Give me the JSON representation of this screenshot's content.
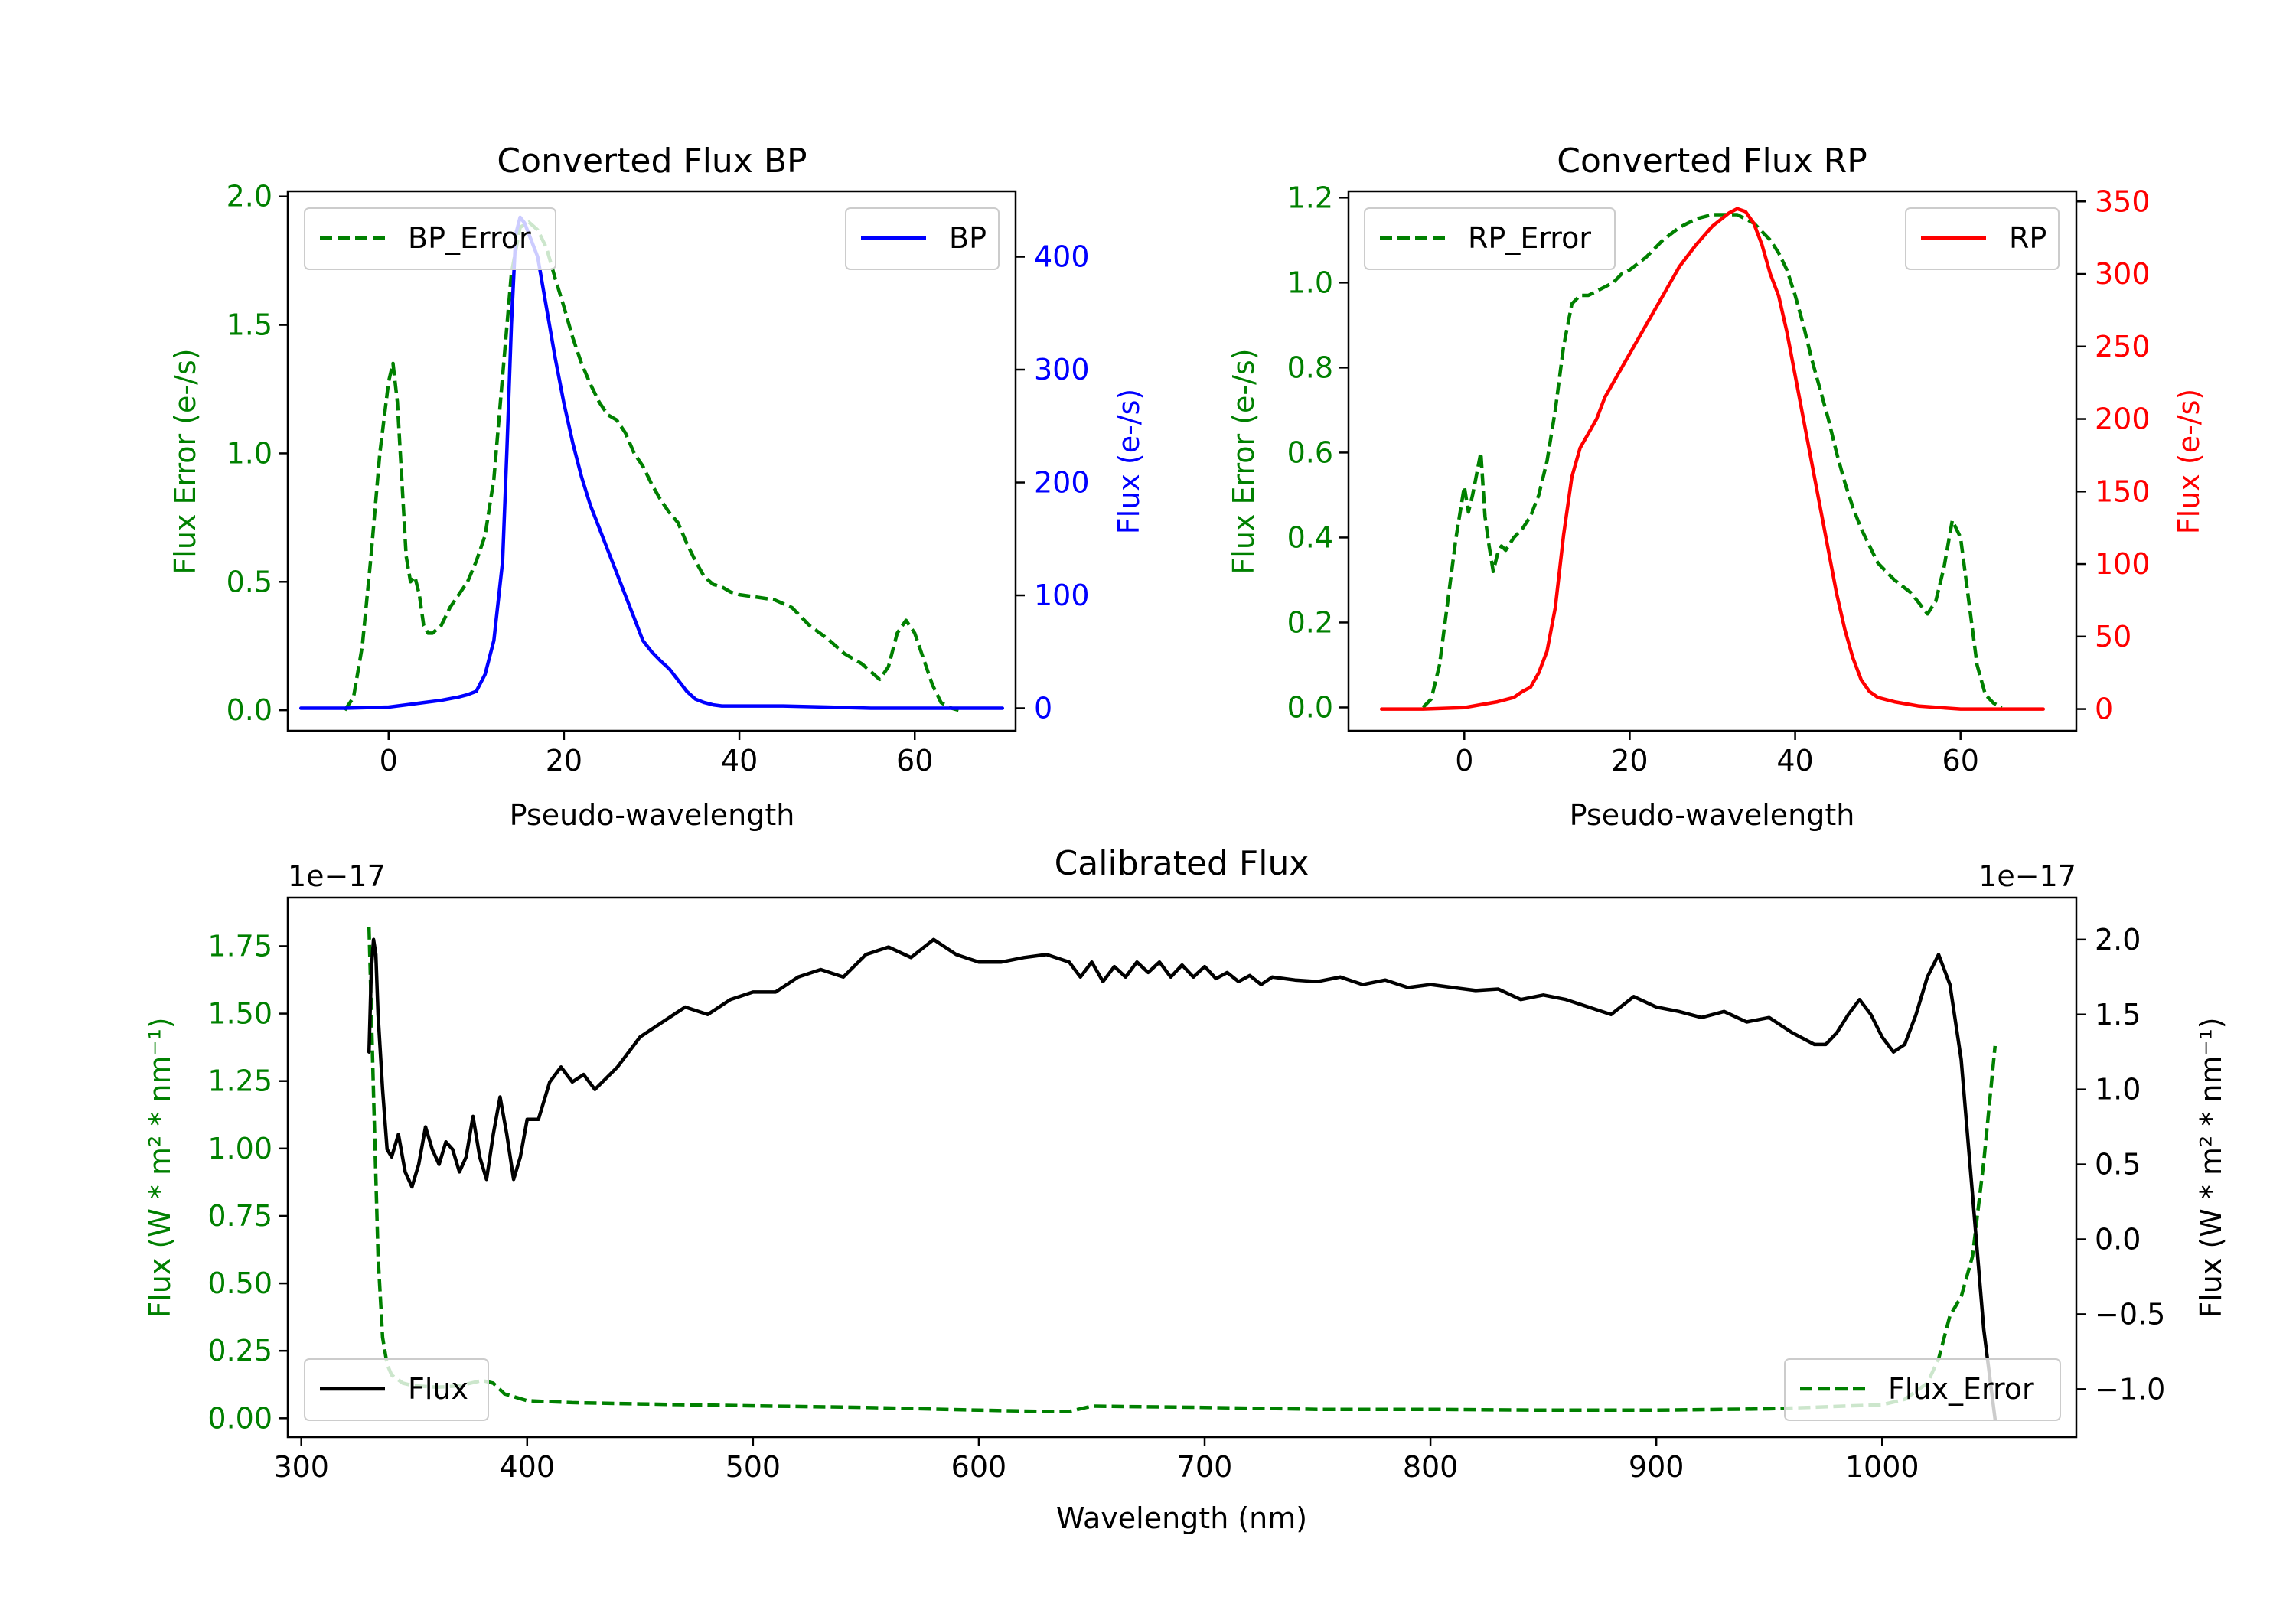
{
  "figure": {
    "subplots": [
      "bp",
      "rp",
      "cal"
    ]
  },
  "chart_data": [
    {
      "id": "bp",
      "type": "line",
      "title": "Converted Flux BP",
      "xlabel": "Pseudo-wavelength",
      "ylabel_left": "Flux Error (e-/s)",
      "ylabel_right": "Flux (e-/s)",
      "xlim": [
        -11.5,
        71.5
      ],
      "ylim_left": [
        -0.08,
        2.02
      ],
      "ylim_right": [
        -20,
        458
      ],
      "xticks": [
        0,
        20,
        40,
        60
      ],
      "yticks_left": [
        "0.0",
        "0.5",
        "1.0",
        "1.5",
        "2.0"
      ],
      "yticks_right": [
        "0",
        "100",
        "200",
        "300",
        "400"
      ],
      "colors": {
        "left": "#008000",
        "right": "#0000ff"
      },
      "legends": [
        {
          "label": "BP_Error",
          "placement": "upper left",
          "style": "dashed",
          "color": "#008000"
        },
        {
          "label": "BP",
          "placement": "upper right",
          "style": "solid",
          "color": "#0000ff"
        }
      ],
      "series": [
        {
          "name": "BP_Error",
          "axis": "left",
          "color": "#008000",
          "style": "dashed",
          "x": [
            -5,
            -4,
            -3,
            -2,
            -1,
            0,
            0.5,
            1,
            1.5,
            2,
            2.5,
            3,
            3.5,
            4,
            4.5,
            5,
            6,
            7,
            8,
            9,
            10,
            11,
            12,
            13,
            14,
            15,
            16,
            17,
            18,
            19,
            20,
            21,
            22,
            23,
            24,
            25,
            26,
            27,
            28,
            29,
            30,
            31,
            32,
            33,
            34,
            35,
            36,
            37,
            38,
            39,
            40,
            42,
            44,
            46,
            48,
            50,
            52,
            54,
            56,
            57,
            58,
            59,
            60,
            61,
            62,
            63,
            64,
            65
          ],
          "y": [
            0,
            0.05,
            0.25,
            0.6,
            1.0,
            1.28,
            1.35,
            1.2,
            0.9,
            0.6,
            0.5,
            0.52,
            0.45,
            0.33,
            0.3,
            0.3,
            0.33,
            0.4,
            0.45,
            0.5,
            0.58,
            0.68,
            0.9,
            1.3,
            1.7,
            1.88,
            1.9,
            1.87,
            1.8,
            1.68,
            1.57,
            1.45,
            1.35,
            1.27,
            1.2,
            1.15,
            1.13,
            1.08,
            1.0,
            0.95,
            0.88,
            0.82,
            0.77,
            0.73,
            0.65,
            0.58,
            0.52,
            0.49,
            0.48,
            0.46,
            0.45,
            0.44,
            0.43,
            0.4,
            0.33,
            0.28,
            0.22,
            0.18,
            0.12,
            0.17,
            0.3,
            0.35,
            0.3,
            0.2,
            0.1,
            0.03,
            0.01,
            0.0
          ]
        },
        {
          "name": "BP",
          "axis": "right",
          "color": "#0000ff",
          "style": "solid",
          "x": [
            -10,
            -5,
            0,
            2,
            4,
            6,
            8,
            9,
            10,
            11,
            12,
            13,
            13.5,
            14,
            14.5,
            15,
            15.5,
            16,
            17,
            18,
            19,
            20,
            21,
            22,
            23,
            24,
            25,
            26,
            27,
            28,
            29,
            30,
            31,
            32,
            33,
            34,
            35,
            36,
            37,
            38,
            40,
            42,
            45,
            50,
            55,
            60,
            65,
            70
          ],
          "y": [
            0,
            0,
            1,
            3,
            5,
            7,
            10,
            12,
            15,
            30,
            60,
            130,
            230,
            340,
            420,
            435,
            430,
            420,
            400,
            355,
            310,
            270,
            235,
            205,
            180,
            160,
            140,
            120,
            100,
            80,
            60,
            50,
            42,
            35,
            25,
            15,
            8,
            5,
            3,
            2,
            2,
            2,
            2,
            1,
            0,
            0,
            0,
            0
          ]
        }
      ]
    },
    {
      "id": "rp",
      "type": "line",
      "title": "Converted Flux RP",
      "xlabel": "Pseudo-wavelength",
      "ylabel_left": "Flux Error (e-/s)",
      "ylabel_right": "Flux (e-/s)",
      "xlim": [
        -14,
        74
      ],
      "ylim_left": [
        -0.055,
        1.215
      ],
      "ylim_right": [
        -15,
        357
      ],
      "xticks": [
        0,
        20,
        40,
        60
      ],
      "yticks_left": [
        "0.0",
        "0.2",
        "0.4",
        "0.6",
        "0.8",
        "1.0",
        "1.2"
      ],
      "yticks_right": [
        "0",
        "50",
        "100",
        "150",
        "200",
        "250",
        "300",
        "350"
      ],
      "colors": {
        "left": "#008000",
        "right": "#ff0000"
      },
      "legends": [
        {
          "label": "RP_Error",
          "placement": "upper left",
          "style": "dashed",
          "color": "#008000"
        },
        {
          "label": "RP",
          "placement": "upper right",
          "style": "solid",
          "color": "#ff0000"
        }
      ],
      "series": [
        {
          "name": "RP_Error",
          "axis": "left",
          "color": "#008000",
          "style": "dashed",
          "x": [
            -5,
            -4,
            -3,
            -2,
            -1,
            0,
            0.5,
            1,
            1.5,
            2,
            2.5,
            3,
            3.5,
            4,
            4.5,
            5,
            6,
            7,
            8,
            9,
            10,
            11,
            12,
            13,
            14,
            15,
            16,
            17,
            18,
            19,
            20,
            22,
            24,
            26,
            28,
            30,
            32,
            33,
            34,
            35,
            36,
            37,
            38,
            39,
            40,
            41,
            42,
            43,
            44,
            45,
            46,
            47,
            48,
            49,
            50,
            52,
            54,
            56,
            57,
            58,
            59,
            60,
            61,
            62,
            63,
            64,
            65
          ],
          "y": [
            0,
            0.02,
            0.1,
            0.25,
            0.4,
            0.52,
            0.46,
            0.5,
            0.55,
            0.6,
            0.45,
            0.38,
            0.32,
            0.36,
            0.38,
            0.37,
            0.4,
            0.42,
            0.45,
            0.5,
            0.58,
            0.7,
            0.85,
            0.95,
            0.97,
            0.97,
            0.98,
            0.99,
            1.0,
            1.02,
            1.03,
            1.06,
            1.1,
            1.13,
            1.15,
            1.16,
            1.16,
            1.16,
            1.15,
            1.14,
            1.12,
            1.1,
            1.07,
            1.03,
            0.97,
            0.9,
            0.82,
            0.75,
            0.68,
            0.6,
            0.53,
            0.47,
            0.42,
            0.38,
            0.34,
            0.3,
            0.27,
            0.22,
            0.25,
            0.33,
            0.44,
            0.4,
            0.25,
            0.1,
            0.03,
            0.01,
            0.0
          ]
        },
        {
          "name": "RP",
          "axis": "right",
          "color": "#ff0000",
          "style": "solid",
          "x": [
            -10,
            -5,
            0,
            2,
            4,
            6,
            7,
            8,
            9,
            10,
            11,
            12,
            13,
            14,
            15,
            16,
            17,
            18,
            20,
            22,
            24,
            26,
            28,
            30,
            32,
            33,
            34,
            35,
            36,
            37,
            38,
            39,
            40,
            41,
            42,
            43,
            44,
            45,
            46,
            47,
            48,
            49,
            50,
            52,
            55,
            60,
            65,
            70
          ],
          "y": [
            0,
            0,
            1,
            3,
            5,
            8,
            12,
            15,
            25,
            40,
            70,
            120,
            160,
            180,
            190,
            200,
            215,
            225,
            245,
            265,
            285,
            305,
            320,
            333,
            342,
            345,
            343,
            335,
            320,
            300,
            285,
            260,
            230,
            200,
            170,
            140,
            110,
            80,
            55,
            35,
            20,
            12,
            8,
            5,
            2,
            0,
            0,
            0
          ]
        }
      ]
    },
    {
      "id": "cal",
      "type": "line",
      "title": "Calibrated Flux",
      "xlabel": "Wavelength (nm)",
      "ylabel_left": "Flux (W * m² * nm⁻¹)",
      "ylabel_right": "Flux (W * m² * nm⁻¹)",
      "offset_left": "1e−17",
      "offset_right": "1e−17",
      "xlim": [
        294,
        1086
      ],
      "ylim_left": [
        -0.07,
        1.93
      ],
      "ylim_right": [
        -1.32,
        2.28
      ],
      "xticks": [
        300,
        400,
        500,
        600,
        700,
        800,
        900,
        1000
      ],
      "yticks_left": [
        "0.00",
        "0.25",
        "0.50",
        "0.75",
        "1.00",
        "1.25",
        "1.50",
        "1.75"
      ],
      "yticks_right": [
        "−1.0",
        "−0.5",
        "0.0",
        "0.5",
        "1.0",
        "1.5",
        "2.0"
      ],
      "colors": {
        "left": "#008000",
        "right": "#000000"
      },
      "legends": [
        {
          "label": "Flux",
          "placement": "lower left",
          "style": "solid",
          "color": "#000000"
        },
        {
          "label": "Flux_Error",
          "placement": "lower right",
          "style": "dashed",
          "color": "#008000"
        }
      ],
      "series": [
        {
          "name": "Flux_Error",
          "axis": "left",
          "color": "#008000",
          "style": "dashed",
          "x": [
            330,
            332,
            334,
            336,
            338,
            340,
            345,
            350,
            360,
            370,
            380,
            385,
            390,
            400,
            420,
            450,
            500,
            550,
            600,
            630,
            640,
            650,
            700,
            750,
            800,
            850,
            900,
            950,
            1000,
            1010,
            1020,
            1025,
            1030,
            1035,
            1040,
            1045,
            1050
          ],
          "y": [
            1.82,
            1.2,
            0.6,
            0.3,
            0.2,
            0.16,
            0.13,
            0.12,
            0.115,
            0.12,
            0.14,
            0.13,
            0.09,
            0.065,
            0.058,
            0.053,
            0.046,
            0.04,
            0.03,
            0.025,
            0.025,
            0.045,
            0.04,
            0.033,
            0.033,
            0.03,
            0.03,
            0.035,
            0.05,
            0.07,
            0.13,
            0.22,
            0.38,
            0.45,
            0.6,
            0.95,
            1.38
          ]
        },
        {
          "name": "Flux",
          "axis": "right",
          "color": "#000000",
          "style": "solid",
          "x": [
            330,
            331,
            332,
            333,
            334,
            336,
            338,
            340,
            343,
            346,
            349,
            352,
            355,
            358,
            361,
            364,
            367,
            370,
            373,
            376,
            379,
            382,
            385,
            388,
            391,
            394,
            397,
            400,
            405,
            410,
            415,
            420,
            425,
            430,
            440,
            450,
            460,
            470,
            480,
            490,
            500,
            510,
            520,
            530,
            540,
            550,
            560,
            570,
            580,
            590,
            600,
            610,
            620,
            630,
            640,
            645,
            650,
            655,
            660,
            665,
            670,
            675,
            680,
            685,
            690,
            695,
            700,
            705,
            710,
            715,
            720,
            725,
            730,
            740,
            750,
            760,
            770,
            780,
            790,
            800,
            810,
            820,
            830,
            840,
            850,
            860,
            870,
            880,
            890,
            900,
            910,
            920,
            930,
            940,
            950,
            960,
            970,
            975,
            980,
            985,
            990,
            995,
            1000,
            1005,
            1010,
            1015,
            1020,
            1025,
            1030,
            1035,
            1040,
            1045,
            1050
          ],
          "y": [
            1.25,
            1.8,
            2.0,
            1.9,
            1.5,
            1.0,
            0.6,
            0.55,
            0.7,
            0.45,
            0.35,
            0.5,
            0.75,
            0.6,
            0.5,
            0.65,
            0.6,
            0.45,
            0.55,
            0.82,
            0.55,
            0.4,
            0.7,
            0.95,
            0.7,
            0.4,
            0.55,
            0.8,
            0.8,
            1.05,
            1.15,
            1.05,
            1.1,
            1.0,
            1.15,
            1.35,
            1.45,
            1.55,
            1.5,
            1.6,
            1.65,
            1.65,
            1.75,
            1.8,
            1.75,
            1.9,
            1.95,
            1.88,
            2.0,
            1.9,
            1.85,
            1.85,
            1.88,
            1.9,
            1.85,
            1.75,
            1.85,
            1.72,
            1.82,
            1.75,
            1.85,
            1.78,
            1.85,
            1.75,
            1.83,
            1.75,
            1.82,
            1.74,
            1.78,
            1.72,
            1.76,
            1.7,
            1.75,
            1.73,
            1.72,
            1.75,
            1.7,
            1.73,
            1.68,
            1.7,
            1.68,
            1.66,
            1.67,
            1.6,
            1.63,
            1.6,
            1.55,
            1.5,
            1.62,
            1.55,
            1.52,
            1.48,
            1.52,
            1.45,
            1.48,
            1.38,
            1.3,
            1.3,
            1.38,
            1.5,
            1.6,
            1.5,
            1.35,
            1.25,
            1.3,
            1.5,
            1.75,
            1.9,
            1.7,
            1.2,
            0.3,
            -0.6,
            -1.2
          ]
        }
      ]
    }
  ]
}
